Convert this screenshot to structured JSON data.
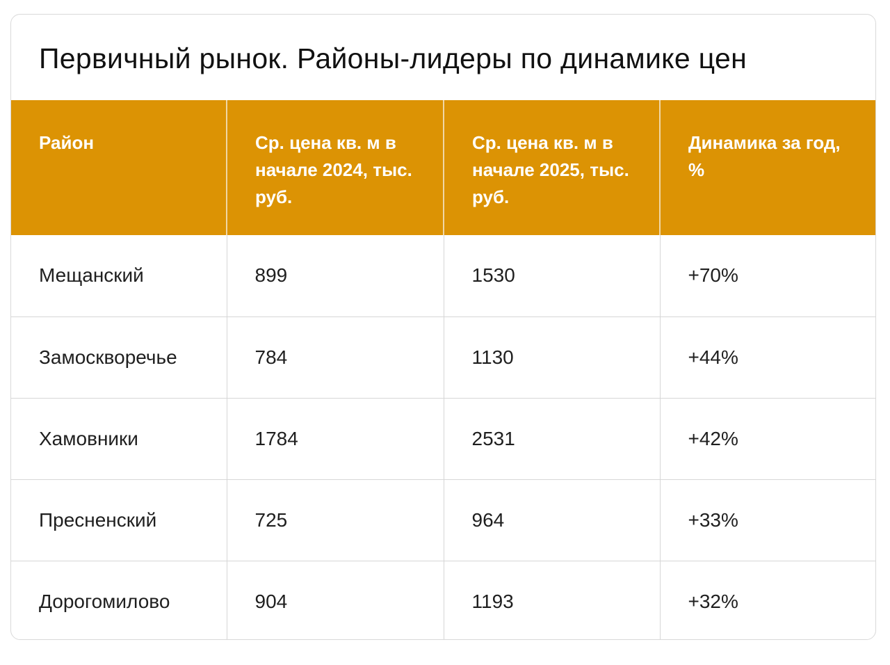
{
  "title": "Первичный рынок. Районы-лидеры по динамике цен",
  "table": {
    "headers": [
      "Район",
      "Ср. цена кв. м в начале 2024, тыс. руб.",
      "Ср. цена кв. м в начале 2025, тыс. руб.",
      "Динамика за год, %"
    ],
    "rows": [
      [
        "Мещанский",
        "899",
        "1530",
        "+70%"
      ],
      [
        "Замоскворечье",
        "784",
        "1130",
        "+44%"
      ],
      [
        "Хамовники",
        "1784",
        "2531",
        "+42%"
      ],
      [
        "Пресненский",
        "725",
        "964",
        "+33%"
      ],
      [
        "Дорогомилово",
        "904",
        "1193",
        "+32%"
      ]
    ]
  },
  "colors": {
    "header_background": "#dc9304",
    "header_text": "#ffffff",
    "cell_text": "#1f1f1f"
  }
}
